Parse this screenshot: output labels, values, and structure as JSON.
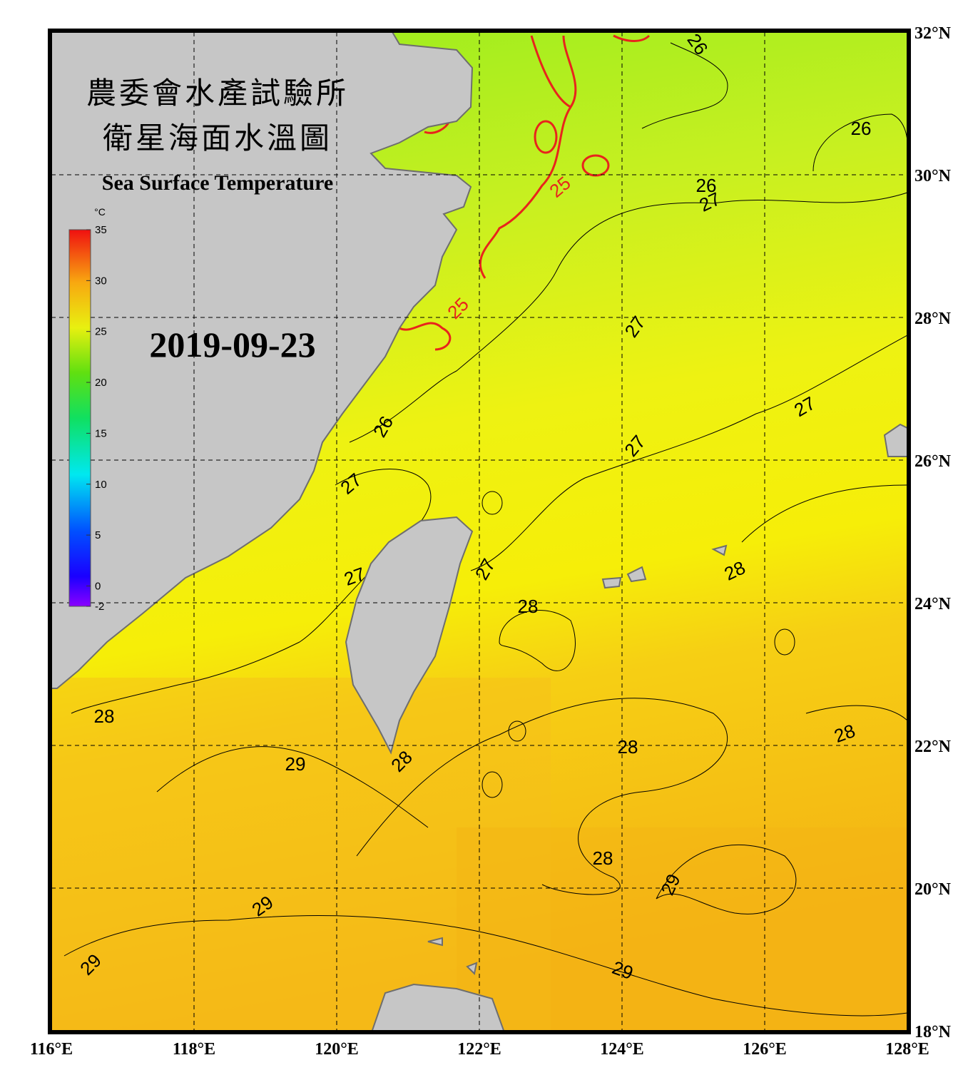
{
  "map": {
    "title_lines": [
      "農委會水產試驗所",
      "衛星海面水溫圖"
    ],
    "subtitle": "Sea Surface Temperature",
    "date": "2019-09-23",
    "lonlim": [
      116,
      128
    ],
    "latlim": [
      18,
      32
    ],
    "lon_ticks": [
      {
        "value": 116,
        "label": "116°E"
      },
      {
        "value": 118,
        "label": "118°E"
      },
      {
        "value": 120,
        "label": "120°E"
      },
      {
        "value": 122,
        "label": "122°E"
      },
      {
        "value": 124,
        "label": "124°E"
      },
      {
        "value": 126,
        "label": "126°E"
      },
      {
        "value": 128,
        "label": "128°E"
      }
    ],
    "lat_ticks": [
      {
        "value": 32,
        "label": "32°N"
      },
      {
        "value": 30,
        "label": "30°N"
      },
      {
        "value": 28,
        "label": "28°N"
      },
      {
        "value": 26,
        "label": "26°N"
      },
      {
        "value": 24,
        "label": "24°N"
      },
      {
        "value": 22,
        "label": "22°N"
      },
      {
        "value": 20,
        "label": "20°N"
      },
      {
        "value": 18,
        "label": "18°N"
      }
    ],
    "grid": true,
    "colorbar": {
      "unit": "°C",
      "lim": [
        -2,
        35
      ],
      "ticks": [
        35,
        30,
        25,
        20,
        15,
        10,
        5,
        0,
        -2
      ]
    },
    "contour_labels": [
      {
        "value": 26,
        "color": "#000000"
      },
      {
        "value": 26,
        "color": "#000000"
      },
      {
        "value": 26,
        "color": "#000000"
      },
      {
        "value": 27,
        "color": "#000000"
      },
      {
        "value": 25,
        "color": "#e8241c"
      },
      {
        "value": 25,
        "color": "#e8241c"
      },
      {
        "value": 27,
        "color": "#000000"
      },
      {
        "value": 27,
        "color": "#000000"
      },
      {
        "value": 27,
        "color": "#000000"
      },
      {
        "value": 26,
        "color": "#000000"
      },
      {
        "value": 27,
        "color": "#000000"
      },
      {
        "value": 27,
        "color": "#000000"
      },
      {
        "value": 27,
        "color": "#000000"
      },
      {
        "value": 28,
        "color": "#000000"
      },
      {
        "value": 28,
        "color": "#000000"
      },
      {
        "value": 28,
        "color": "#000000"
      },
      {
        "value": 28,
        "color": "#000000"
      },
      {
        "value": 28,
        "color": "#000000"
      },
      {
        "value": 29,
        "color": "#000000"
      },
      {
        "value": 28,
        "color": "#000000"
      },
      {
        "value": 28,
        "color": "#000000"
      },
      {
        "value": 29,
        "color": "#000000"
      },
      {
        "value": 29,
        "color": "#000000"
      },
      {
        "value": 29,
        "color": "#000000"
      },
      {
        "value": 29,
        "color": "#000000"
      }
    ]
  }
}
